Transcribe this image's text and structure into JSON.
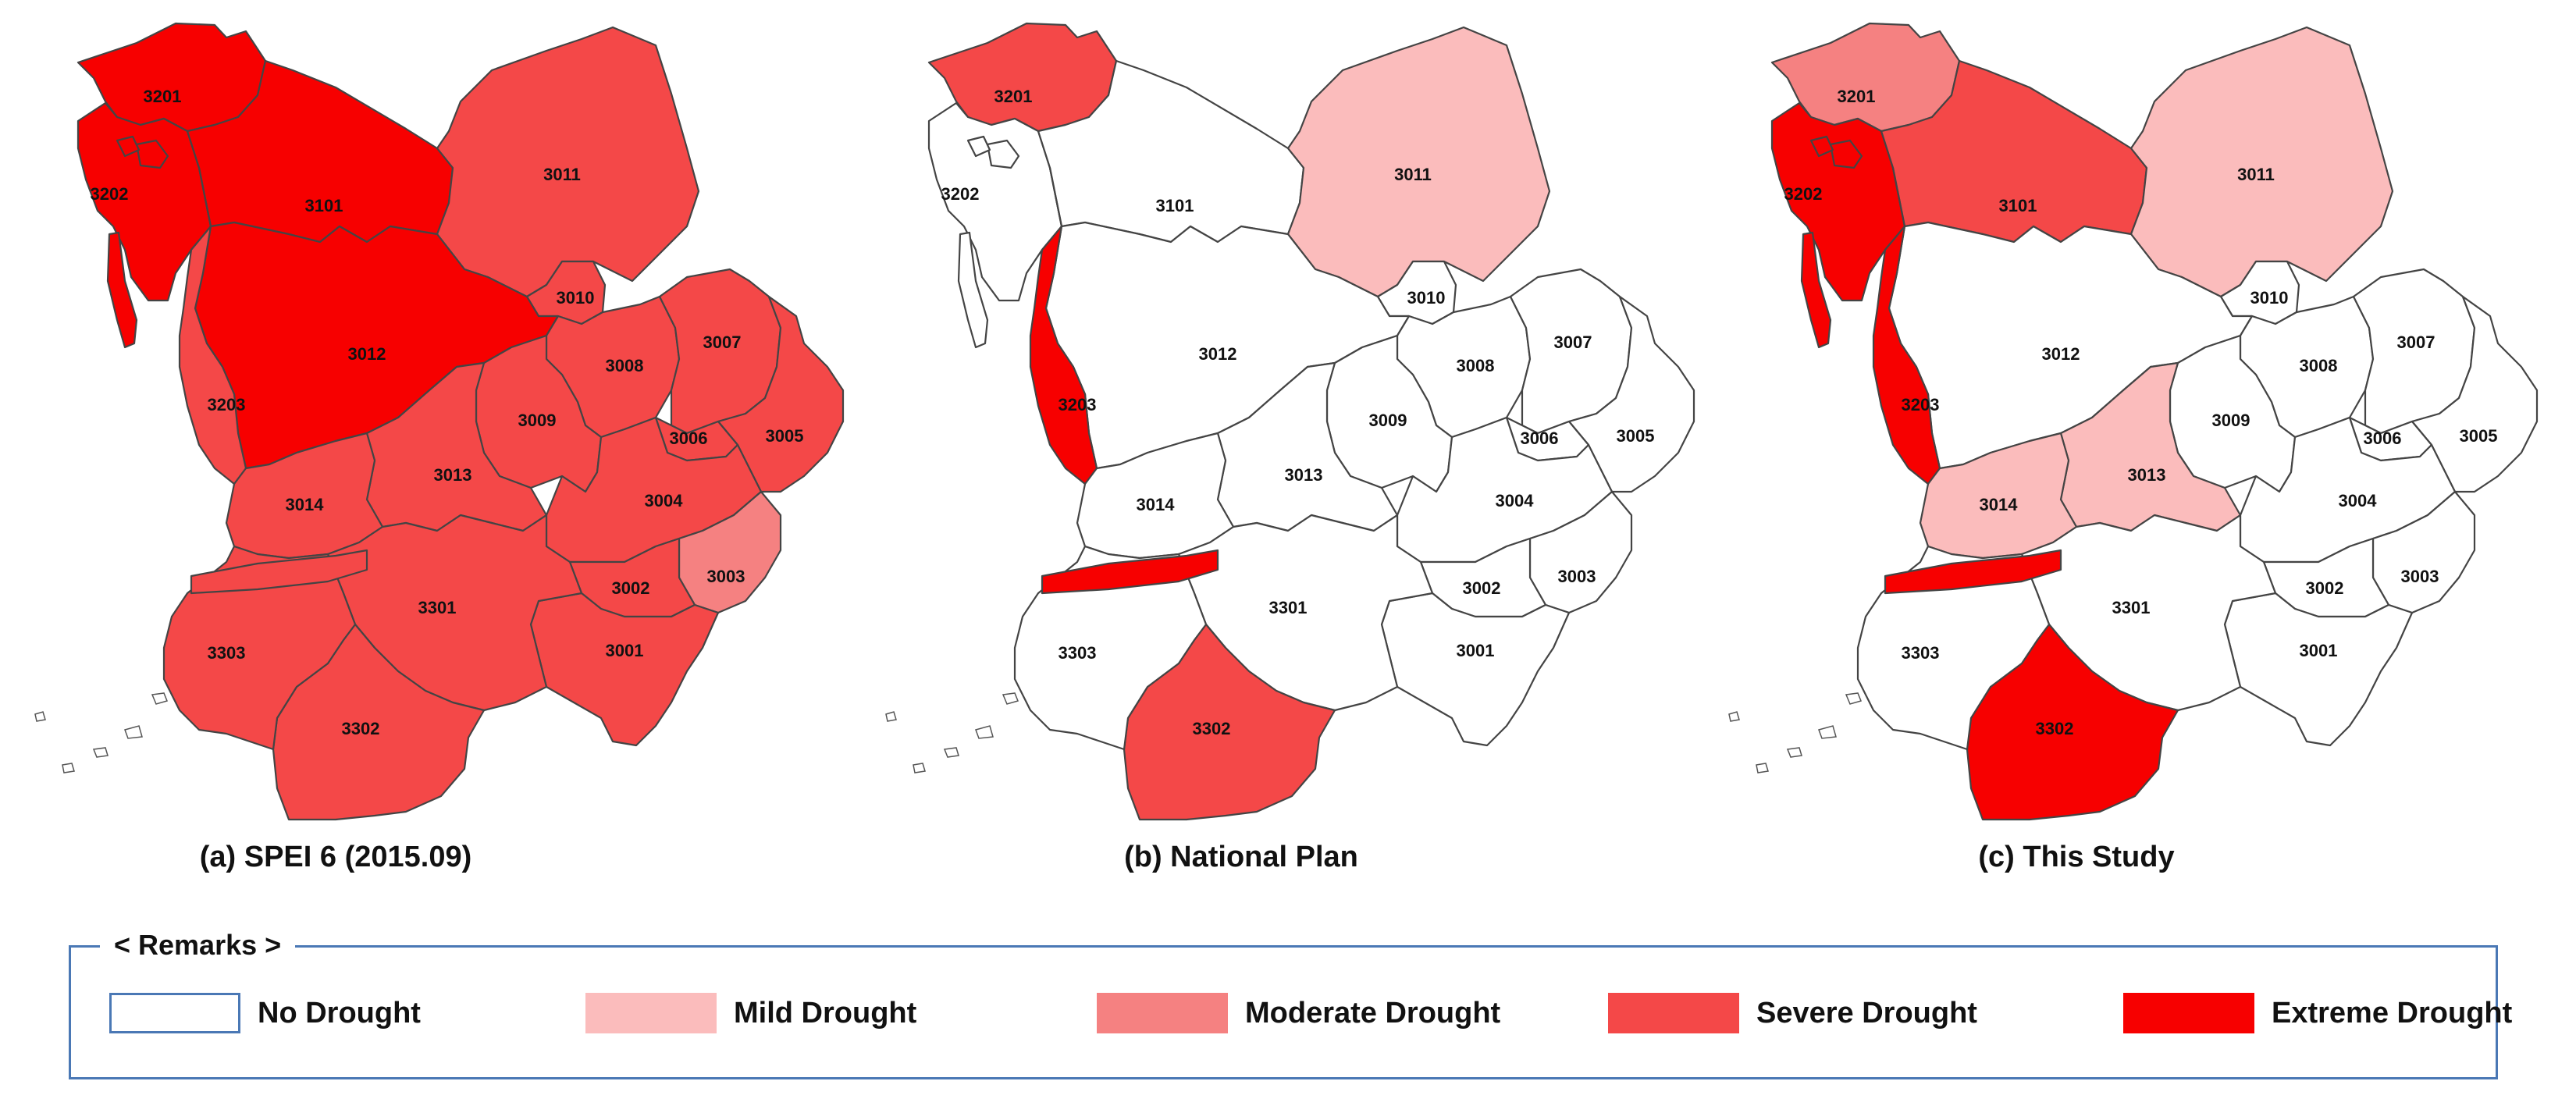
{
  "colors": {
    "none": "#ffffff",
    "mild": "#fbbcbc",
    "moderate": "#f58181",
    "severe": "#f44848",
    "extreme": "#f70000",
    "legend_border": "#4a78b5"
  },
  "legend": {
    "title": "< Remarks >",
    "items": [
      {
        "key": "none",
        "label": "No Drought"
      },
      {
        "key": "mild",
        "label": "Mild Drought"
      },
      {
        "key": "moderate",
        "label": "Moderate Drought"
      },
      {
        "key": "severe",
        "label": "Severe Drought"
      },
      {
        "key": "extreme",
        "label": "Extreme Drought"
      }
    ]
  },
  "panels": [
    {
      "caption": "(a) SPEI 6 (2015.09)",
      "classes": {
        "3201": "extreme",
        "3202": "extreme",
        "3101": "extreme",
        "3012": "extreme",
        "3011": "severe",
        "3010": "severe",
        "3203": "severe",
        "3014": "severe",
        "3013": "severe",
        "3009": "severe",
        "3008": "severe",
        "3007": "severe",
        "3006": "severe",
        "3005": "severe",
        "3004": "severe",
        "3002": "severe",
        "3001": "severe",
        "3301": "severe",
        "3302": "severe",
        "3303": "severe",
        "3003": "moderate"
      }
    },
    {
      "caption": "(b) National Plan",
      "classes": {
        "3201": "severe",
        "3202": "none",
        "3101": "none",
        "3012": "none",
        "3011": "mild",
        "3010": "none",
        "3203": "extreme",
        "3014": "none",
        "3013": "none",
        "3009": "none",
        "3008": "none",
        "3007": "none",
        "3006": "none",
        "3005": "none",
        "3004": "none",
        "3002": "none",
        "3001": "none",
        "3301": "none",
        "3302": "severe",
        "3303": "none",
        "3003": "none",
        "estuary": "extreme"
      }
    },
    {
      "caption": "(c) This Study",
      "classes": {
        "3201": "moderate",
        "3202": "extreme",
        "3101": "severe",
        "3012": "none",
        "3011": "mild",
        "3010": "none",
        "3203": "extreme",
        "3014": "mild",
        "3013": "mild",
        "3009": "none",
        "3008": "none",
        "3007": "none",
        "3006": "none",
        "3005": "none",
        "3004": "none",
        "3002": "none",
        "3001": "none",
        "3301": "none",
        "3302": "extreme",
        "3303": "none",
        "3003": "none",
        "estuary": "extreme"
      }
    }
  ]
}
